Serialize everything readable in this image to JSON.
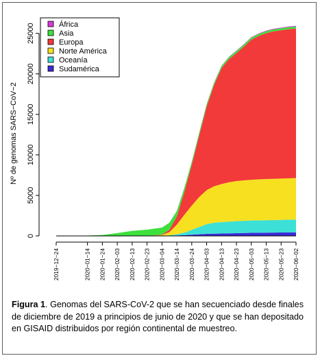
{
  "chart_data": {
    "type": "area",
    "stacked": true,
    "ylabel": "Nº de genomas SARS−CoV−2",
    "xlabel": "",
    "ylim": [
      0,
      27000
    ],
    "yticks": [
      0,
      5000,
      10000,
      15000,
      20000,
      25000
    ],
    "xticks": [
      "2019−12−24",
      "2020−01−14",
      "2020−01−24",
      "2020−02−03",
      "2020−02−13",
      "2020−02−23",
      "2020−03−04",
      "2020−03−14",
      "2020−03−24",
      "2020−04−03",
      "2020−04−13",
      "2020−04−23",
      "2020−05−03",
      "2020−05−13",
      "2020−05−23",
      "2020−06−02"
    ],
    "grid": false,
    "legend_position": "top-left",
    "x": [
      "2019-12-24",
      "2020-01-14",
      "2020-01-24",
      "2020-02-03",
      "2020-02-13",
      "2020-02-23",
      "2020-03-04",
      "2020-03-09",
      "2020-03-14",
      "2020-03-19",
      "2020-03-24",
      "2020-03-29",
      "2020-04-03",
      "2020-04-08",
      "2020-04-13",
      "2020-04-18",
      "2020-04-23",
      "2020-04-28",
      "2020-05-03",
      "2020-05-08",
      "2020-05-13",
      "2020-05-18",
      "2020-05-23",
      "2020-05-28",
      "2020-06-02"
    ],
    "series": [
      {
        "name": "Sudamérica",
        "color": "#3b2bd6",
        "values": [
          0,
          0,
          0,
          0,
          0,
          0,
          0,
          20,
          50,
          100,
          150,
          200,
          250,
          280,
          300,
          320,
          340,
          360,
          380,
          390,
          400,
          410,
          420,
          430,
          440
        ]
      },
      {
        "name": "Oceanía",
        "color": "#3de0d6",
        "values": [
          0,
          0,
          0,
          0,
          0,
          0,
          10,
          50,
          150,
          300,
          600,
          900,
          1200,
          1350,
          1400,
          1450,
          1480,
          1500,
          1520,
          1530,
          1540,
          1550,
          1560,
          1570,
          1580
        ]
      },
      {
        "name": "Norte América",
        "color": "#f7e020",
        "values": [
          0,
          0,
          0,
          0,
          0,
          0,
          100,
          400,
          1200,
          2200,
          3000,
          3700,
          4200,
          4500,
          4700,
          4850,
          4950,
          5000,
          5030,
          5060,
          5080,
          5090,
          5100,
          5110,
          5120
        ]
      },
      {
        "name": "Europa",
        "color": "#f23a3a",
        "values": [
          0,
          0,
          0,
          0,
          0,
          0,
          50,
          300,
          1000,
          2800,
          5000,
          7600,
          10300,
          12500,
          14300,
          15200,
          15800,
          16500,
          17300,
          17700,
          18000,
          18200,
          18300,
          18400,
          18450
        ]
      },
      {
        "name": "Asia",
        "color": "#3ee03e",
        "values": [
          0,
          40,
          120,
          350,
          620,
          770,
          880,
          850,
          680,
          500,
          370,
          310,
          280,
          270,
          260,
          250,
          250,
          250,
          250,
          250,
          250,
          250,
          250,
          250,
          250
        ]
      },
      {
        "name": "África",
        "color": "#d83ad8",
        "values": [
          0,
          0,
          0,
          0,
          0,
          0,
          0,
          5,
          10,
          15,
          20,
          25,
          30,
          35,
          40,
          45,
          50,
          55,
          60,
          65,
          70,
          75,
          80,
          85,
          90
        ]
      }
    ]
  },
  "caption": {
    "label": "Figura 1",
    "text": ". Genomas del SARS-CoV-2 que se han secuenciado desde finales de diciembre de 2019 a principios de junio de 2020 y que se han depositado en GISAID distribuidos por región continental de muestreo."
  },
  "legend": {
    "items": [
      {
        "label": "África",
        "color": "#d83ad8"
      },
      {
        "label": "Asia",
        "color": "#3ee03e"
      },
      {
        "label": "Europa",
        "color": "#f23a3a"
      },
      {
        "label": "Norte América",
        "color": "#f7e020"
      },
      {
        "label": "Oceanía",
        "color": "#3de0d6"
      },
      {
        "label": "Sudamérica",
        "color": "#3b2bd6"
      }
    ]
  }
}
